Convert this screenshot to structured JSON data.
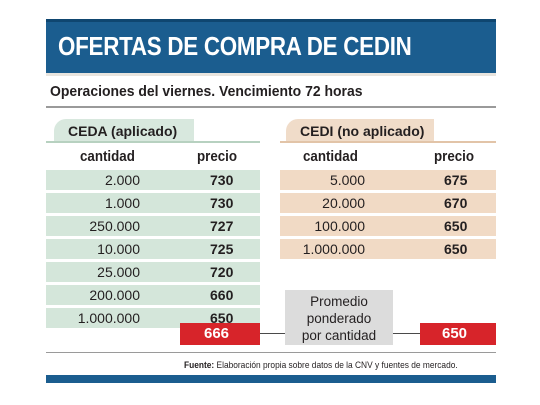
{
  "title": "OFERTAS DE COMPRA DE CEDIN",
  "subtitle": "Operaciones del viernes. Vencimiento 72 horas",
  "ceda": {
    "label": "CEDA (aplicado)",
    "col_qty": "cantidad",
    "col_price": "precio",
    "rows": [
      {
        "qty": "2.000",
        "price": "730"
      },
      {
        "qty": "1.000",
        "price": "730"
      },
      {
        "qty": "250.000",
        "price": "727"
      },
      {
        "qty": "10.000",
        "price": "725"
      },
      {
        "qty": "25.000",
        "price": "720"
      },
      {
        "qty": "200.000",
        "price": "660"
      },
      {
        "qty": "1.000.000",
        "price": "650"
      }
    ],
    "average": "666"
  },
  "cedi": {
    "label": "CEDI (no aplicado)",
    "col_qty": "cantidad",
    "col_price": "precio",
    "rows": [
      {
        "qty": "5.000",
        "price": "675"
      },
      {
        "qty": "20.000",
        "price": "670"
      },
      {
        "qty": "100.000",
        "price": "650"
      },
      {
        "qty": "1.000.000",
        "price": "650"
      }
    ],
    "average": "650"
  },
  "average_label": {
    "line1": "Promedio",
    "line2": "ponderado",
    "line3": "por cantidad"
  },
  "source": {
    "label": "Fuente:",
    "text": "Elaboración propia sobre datos de la CNV y fuentes de mercado."
  },
  "colors": {
    "header_blue": "#1b5d8f",
    "ceda_green": "#d4e6da",
    "cedi_tan": "#f1dac5",
    "result_red": "#d7242a"
  }
}
